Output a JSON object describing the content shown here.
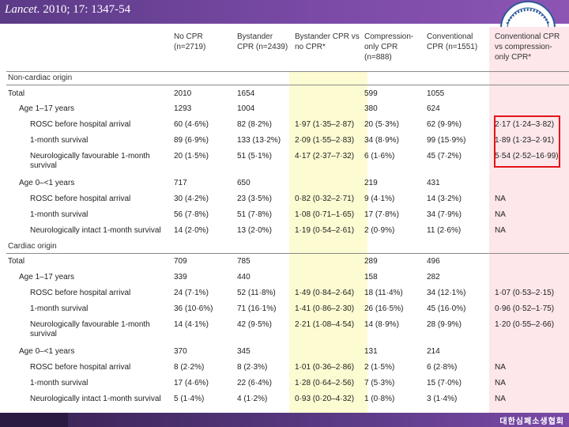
{
  "citation": {
    "journal": "Lancet.",
    "rest": " 2010; 17: 1347-54"
  },
  "footer": {
    "society": "대한심폐소생협회"
  },
  "columns": [
    {
      "line1": "No CPR",
      "line2": "(n=2719)"
    },
    {
      "line1": "Bystander",
      "line2": "CPR (n=2439)"
    },
    {
      "line1": "Bystander CPR vs",
      "line2": "no CPR*"
    },
    {
      "line1": "Compression-",
      "line2": "only CPR",
      "line3": "(n=888)"
    },
    {
      "line1": "Conventional",
      "line2": "CPR (n=1551)"
    },
    {
      "line1": "Conventional CPR",
      "line2": "vs compression-",
      "line3": "only CPR*"
    }
  ],
  "sections": {
    "noncardiac": "Non-cardiac origin",
    "cardiac": "Cardiac origin"
  },
  "rows": [
    {
      "label": "Total",
      "cells": [
        "2010",
        "1654",
        "",
        "599",
        "1055",
        ""
      ]
    },
    {
      "label": "Age 1–17 years",
      "cells": [
        "1293",
        "1004",
        "",
        "380",
        "624",
        ""
      ]
    },
    {
      "label": "ROSC before hospital arrival",
      "cells": [
        "60 (4·6%)",
        "82 (8·2%)",
        "1·97 (1·35–2·87)",
        "20 (5·3%)",
        "62 (9·9%)",
        "2·17 (1·24–3·82)"
      ]
    },
    {
      "label": "1-month survival",
      "cells": [
        "89 (6·9%)",
        "133 (13·2%)",
        "2·09 (1·55–2·83)",
        "34 (8·9%)",
        "99 (15·9%)",
        "1·89 (1·23–2·91)"
      ]
    },
    {
      "label": "Neurologically favourable 1-month",
      "label2": "survival",
      "cells": [
        "20 (1·5%)",
        "51 (5·1%)",
        "4·17 (2·37–7·32)",
        "6 (1·6%)",
        "45 (7·2%)",
        "5·54 (2·52–16·99)"
      ]
    },
    {
      "label": "Age 0–<1 years",
      "cells": [
        "717",
        "650",
        "",
        "219",
        "431",
        ""
      ]
    },
    {
      "label": "ROSC before hospital arrival",
      "cells": [
        "30 (4·2%)",
        "23 (3·5%)",
        "0·82 (0·32–2·71)",
        "9 (4·1%)",
        "14 (3·2%)",
        "NA"
      ]
    },
    {
      "label": "1-month survival",
      "cells": [
        "56 (7·8%)",
        "51 (7·8%)",
        "1·08 (0·71–1·65)",
        "17 (7·8%)",
        "34 (7·9%)",
        "NA"
      ]
    },
    {
      "label": "Neurologically intact 1-month survival",
      "cells": [
        "14 (2·0%)",
        "13 (2·0%)",
        "1·19 (0·54–2·61)",
        "2 (0·9%)",
        "11 (2·6%)",
        "NA"
      ]
    },
    {
      "label": "Total",
      "cells": [
        "709",
        "785",
        "",
        "289",
        "496",
        ""
      ]
    },
    {
      "label": "Age 1–17 years",
      "cells": [
        "339",
        "440",
        "",
        "158",
        "282",
        ""
      ]
    },
    {
      "label": "ROSC before hospital arrival",
      "cells": [
        "24 (7·1%)",
        "52 (11·8%)",
        "1·49 (0·84–2·64)",
        "18 (11·4%)",
        "34 (12·1%)",
        "1·07 (0·53–2·15)"
      ]
    },
    {
      "label": "1-month survival",
      "cells": [
        "36 (10·6%)",
        "71 (16·1%)",
        "1·41 (0·86–2·30)",
        "26 (16·5%)",
        "45 (16·0%)",
        "0·96 (0·52–1·75)"
      ]
    },
    {
      "label": "Neurologically favourable 1-month",
      "label2": "survival",
      "cells": [
        "14 (4·1%)",
        "42 (9·5%)",
        "2·21 (1·08–4·54)",
        "14 (8·9%)",
        "28 (9·9%)",
        "1·20 (0·55–2·66)"
      ]
    },
    {
      "label": "Age 0–<1 years",
      "cells": [
        "370",
        "345",
        "",
        "131",
        "214",
        ""
      ]
    },
    {
      "label": "ROSC before hospital arrival",
      "cells": [
        "8 (2·2%)",
        "8 (2·3%)",
        "1·01 (0·36–2·86)",
        "2 (1·5%)",
        "6 (2·8%)",
        "NA"
      ]
    },
    {
      "label": "1-month survival",
      "cells": [
        "17 (4·6%)",
        "22 (6·4%)",
        "1·28 (0·64–2·56)",
        "7 (5·3%)",
        "15 (7·0%)",
        "NA"
      ]
    },
    {
      "label": "Neurologically intact 1-month survival",
      "cells": [
        "5 (1·4%)",
        "4 (1·2%)",
        "0·93 (0·20–4·32)",
        "1 (0·8%)",
        "3 (1·4%)",
        "NA"
      ]
    }
  ],
  "colors": {
    "bar": "#6b449a",
    "highlight_yellow": "#fdfbd2",
    "highlight_pink": "#fde7ea",
    "red_box": "#e2141b"
  },
  "logo_icon": "circular-society-seal-icon"
}
